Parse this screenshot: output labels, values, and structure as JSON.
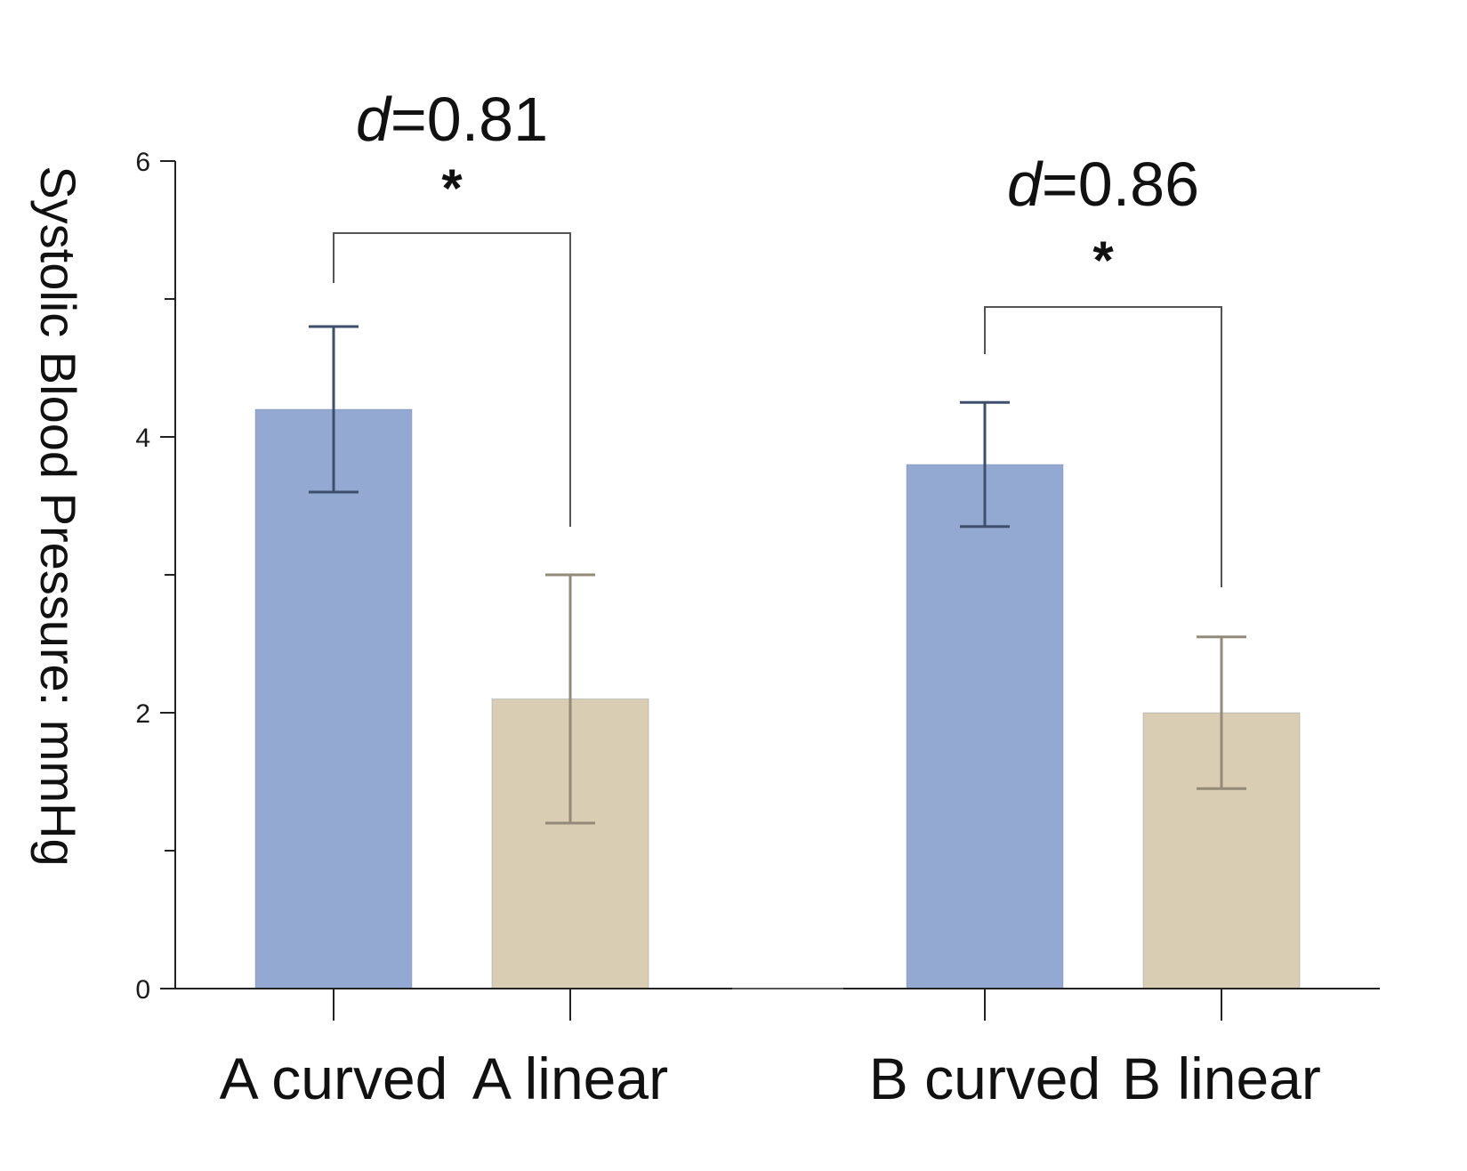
{
  "chart_data": {
    "type": "bar",
    "title": "",
    "xlabel": "",
    "ylabel": "Systolic Blood Pressure: mmHg",
    "ylim": [
      0,
      6
    ],
    "yticks": [
      0,
      2,
      4,
      6
    ],
    "categories": [
      "A curved",
      "A linear",
      "B curved",
      "B linear"
    ],
    "values": [
      4.2,
      2.1,
      3.8,
      2.0
    ],
    "error_upper": [
      4.8,
      3.0,
      4.25,
      2.55
    ],
    "error_lower": [
      3.6,
      1.2,
      3.35,
      1.45
    ],
    "colors": [
      "#93a9d1",
      "#d9cdb3",
      "#93a9d1",
      "#d9cdb3"
    ],
    "error_colors": [
      "#3e4f6e",
      "#948a7a",
      "#3e4f6e",
      "#948a7a"
    ],
    "comparisons": [
      {
        "pair": [
          "A curved",
          "A linear"
        ],
        "effect_size": "0.81",
        "effect_prefix": "d",
        "significance": "*"
      },
      {
        "pair": [
          "B curved",
          "B linear"
        ],
        "effect_size": "0.86",
        "effect_prefix": "d",
        "significance": "*"
      }
    ]
  }
}
